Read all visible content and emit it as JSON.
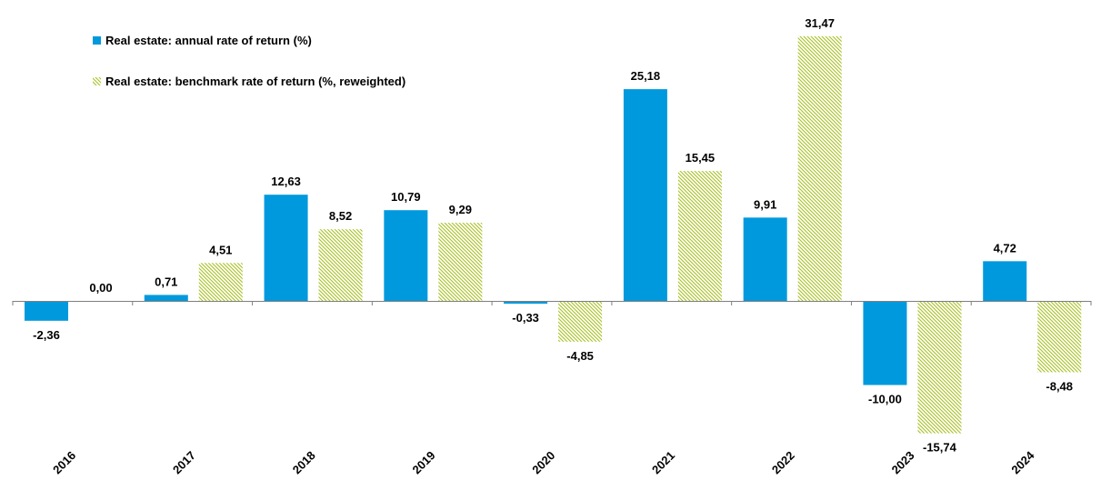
{
  "chart_data": {
    "type": "bar",
    "categories": [
      "2016",
      "2017",
      "2018",
      "2019",
      "2020",
      "2021",
      "2022",
      "2023",
      "2024"
    ],
    "series": [
      {
        "name": "Real estate: annual rate of return (%)",
        "values": [
          -2.36,
          0.71,
          12.63,
          10.79,
          -0.33,
          25.18,
          9.91,
          -10.0,
          4.72
        ],
        "labels": [
          "-2,36",
          "0,71",
          "12,63",
          "10,79",
          "-0,33",
          "25,18",
          "9,91",
          "-10,00",
          "4,72"
        ],
        "color": "#0099DD"
      },
      {
        "name": "Real estate: benchmark rate of return (%, reweighted)",
        "values": [
          0.0,
          4.51,
          8.52,
          9.29,
          -4.85,
          15.45,
          31.47,
          -15.74,
          -8.48
        ],
        "labels": [
          "0,00",
          "4,51",
          "8,52",
          "9,29",
          "-4,85",
          "15,45",
          "31,47",
          "-15,74",
          "-8,48"
        ],
        "color": "#A8C020"
      }
    ],
    "ylim": [
      -16.5,
      31.5
    ],
    "legend_position": "top-left",
    "grid": false
  }
}
